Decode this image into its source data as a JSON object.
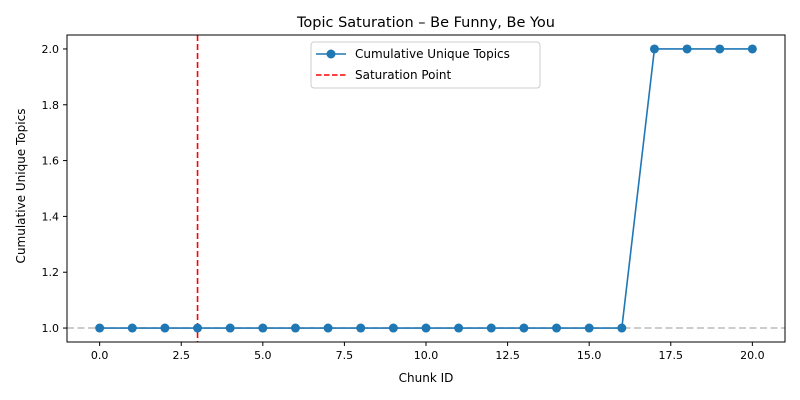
{
  "chart_data": {
    "type": "line",
    "title": "Topic Saturation – Be Funny, Be You",
    "xlabel": "Chunk ID",
    "ylabel": "Cumulative Unique Topics",
    "xlim": [
      -1,
      21
    ],
    "ylim": [
      0.95,
      2.05
    ],
    "x_ticks": [
      0.0,
      2.5,
      5.0,
      7.5,
      10.0,
      12.5,
      15.0,
      17.5,
      20.0
    ],
    "x_tick_labels": [
      "0.0",
      "2.5",
      "5.0",
      "7.5",
      "10.0",
      "12.5",
      "15.0",
      "17.5",
      "20.0"
    ],
    "y_ticks": [
      1.0,
      1.2,
      1.4,
      1.6,
      1.8,
      2.0
    ],
    "y_tick_labels": [
      "1.0",
      "1.2",
      "1.4",
      "1.6",
      "1.8",
      "2.0"
    ],
    "grid": false,
    "legend_position": "top-center",
    "series": [
      {
        "name": "Cumulative Unique Topics",
        "x": [
          0,
          1,
          2,
          3,
          4,
          5,
          6,
          7,
          8,
          9,
          10,
          11,
          12,
          13,
          14,
          15,
          16,
          17,
          18,
          19,
          20
        ],
        "values": [
          1,
          1,
          1,
          1,
          1,
          1,
          1,
          1,
          1,
          1,
          1,
          1,
          1,
          1,
          1,
          1,
          1,
          2,
          2,
          2,
          2
        ],
        "color": "#1f77b4",
        "marker": "circle"
      }
    ],
    "reference_lines": [
      {
        "name": "Saturation Point",
        "orientation": "vertical",
        "value": 3,
        "color": "#ff0000",
        "style": "dashed"
      },
      {
        "orientation": "horizontal",
        "value": 1.0,
        "color": "#bbbbbb",
        "style": "dashed"
      }
    ]
  }
}
